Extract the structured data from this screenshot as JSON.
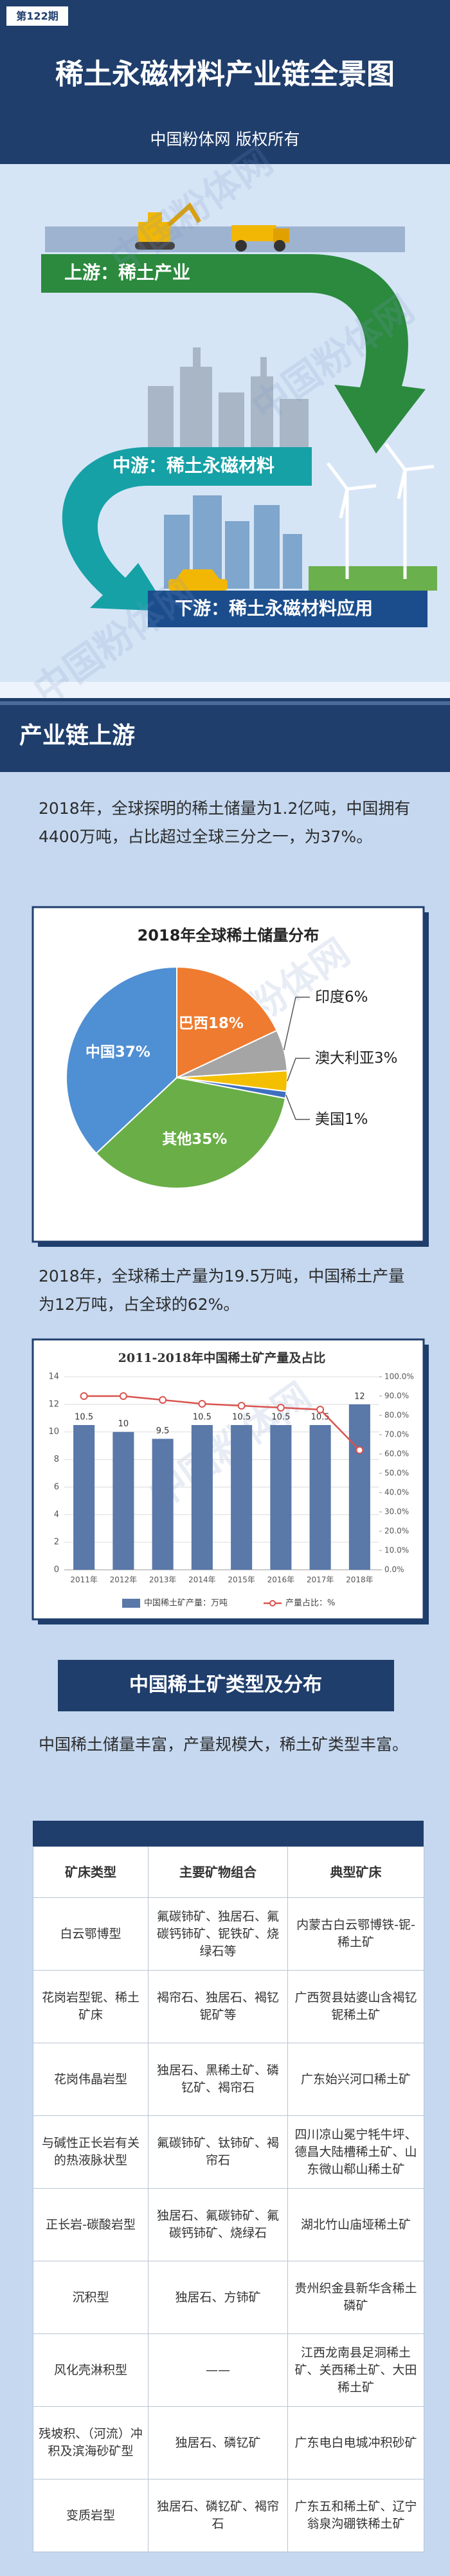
{
  "header": {
    "issue": "第122期",
    "title": "稀土永磁材料产业链全景图",
    "subtitle": "中国粉体网 版权所有"
  },
  "watermark": "中国粉体网",
  "chain": [
    "上游：稀土产业",
    "中游：稀土永磁材料",
    "下游：稀土永磁材料应用"
  ],
  "section1": {
    "title": "产业链上游",
    "paragraph1": "2018年，全球探明的稀土储量为1.2亿吨，中国拥有4400万吨，占比超过全球三分之一，为37%。",
    "paragraph2": "2018年，全球稀土产量为19.5万吨，中国稀土产量为12万吨，占全球的62%。"
  },
  "chart_data": [
    {
      "type": "pie",
      "title": "2018年全球稀土储量分布",
      "categories": [
        "巴西",
        "印度",
        "澳大利亚",
        "美国",
        "其他",
        "中国"
      ],
      "values": [
        18,
        6,
        3,
        1,
        35,
        37
      ],
      "value_labels": [
        "18%",
        "6%",
        "3%",
        "1%",
        "35%",
        "37%"
      ],
      "colors": [
        "#ee7b30",
        "#a5a5a5",
        "#f4bf00",
        "#3f6fbf",
        "#6aae47",
        "#4f8fd4"
      ]
    },
    {
      "type": "combo",
      "title": "2011-2018年中国稀土矿产量及占比",
      "categories": [
        "2011年",
        "2012年",
        "2013年",
        "2014年",
        "2015年",
        "2016年",
        "2017年",
        "2018年"
      ],
      "series": [
        {
          "name": "中国稀土矿产量：万吨",
          "color": "#5a78a8",
          "values": [
            10.5,
            10,
            9.5,
            10.5,
            10.5,
            10.5,
            10.5,
            12
          ]
        },
        {
          "name": "产量占比：%",
          "color": "#d9534f",
          "axis": "y2",
          "values": [
            90,
            90,
            88,
            86,
            85,
            84,
            83,
            62
          ]
        }
      ],
      "ylim": [
        0,
        14
      ],
      "yticks": [
        0,
        2,
        4,
        6,
        8,
        10,
        12,
        14
      ],
      "y2lim": [
        0,
        100
      ],
      "y2ticks": [
        {
          "value": 0,
          "label": "0.0%"
        },
        {
          "value": 10,
          "label": "10.0%"
        },
        {
          "value": 20,
          "label": "20.0%"
        },
        {
          "value": 30,
          "label": "30.0%"
        },
        {
          "value": 40,
          "label": "40.0%"
        },
        {
          "value": 50,
          "label": "50.0%"
        },
        {
          "value": 60,
          "label": "60.0%"
        },
        {
          "value": 70,
          "label": "70.0%"
        },
        {
          "value": 80,
          "label": "80.0%"
        },
        {
          "value": 90,
          "label": "90.0%"
        },
        {
          "value": 100,
          "label": "100.0%"
        }
      ],
      "grid": true
    }
  ],
  "section2": {
    "title": "中国稀土矿类型及分布",
    "paragraph": "中国稀土储量丰富，产量规模大，稀土矿类型丰富。"
  },
  "table": {
    "columns": [
      "矿床类型",
      "主要矿物组合",
      "典型矿床"
    ],
    "rows": [
      [
        "白云鄂博型",
        "氟碳铈矿、独居石、氟碳钙铈矿、铌铁矿、烧绿石等",
        "内蒙古白云鄂博铁-铌-稀土矿"
      ],
      [
        "花岗岩型铌、稀土矿床",
        "褐帘石、独居石、褐钇铌矿等",
        "广西贺县姑婆山含褐钇铌稀土矿"
      ],
      [
        "花岗伟晶岩型",
        "独居石、黑稀土矿、磷钇矿、褐帘石",
        "广东始兴河口稀土矿"
      ],
      [
        "与碱性正长岩有关的热液脉状型",
        "氟碳铈矿、钛铈矿、褐帘石",
        "四川凉山冕宁牦牛坪、德昌大陆槽稀土矿、山东微山郗山稀土矿"
      ],
      [
        "正长岩-碳酸岩型",
        "独居石、氟碳铈矿、氟碳钙铈矿、烧绿石",
        "湖北竹山庙垭稀土矿"
      ],
      [
        "沉积型",
        "独居石、方铈矿",
        "贵州织金县新华含稀土磷矿"
      ],
      [
        "风化壳淋积型",
        "——",
        "江西龙南县足洞稀土矿、关西稀土矿、大田稀土矿"
      ],
      [
        "残坡积、（河流）冲积及滨海砂矿型",
        "独居石、磷钇矿",
        "广东电白电城冲积砂矿"
      ],
      [
        "变质岩型",
        "独居石、磷钇矿、褐帘石",
        "广东五和稀土矿、辽宁翁泉沟硼铁稀土矿"
      ]
    ]
  }
}
